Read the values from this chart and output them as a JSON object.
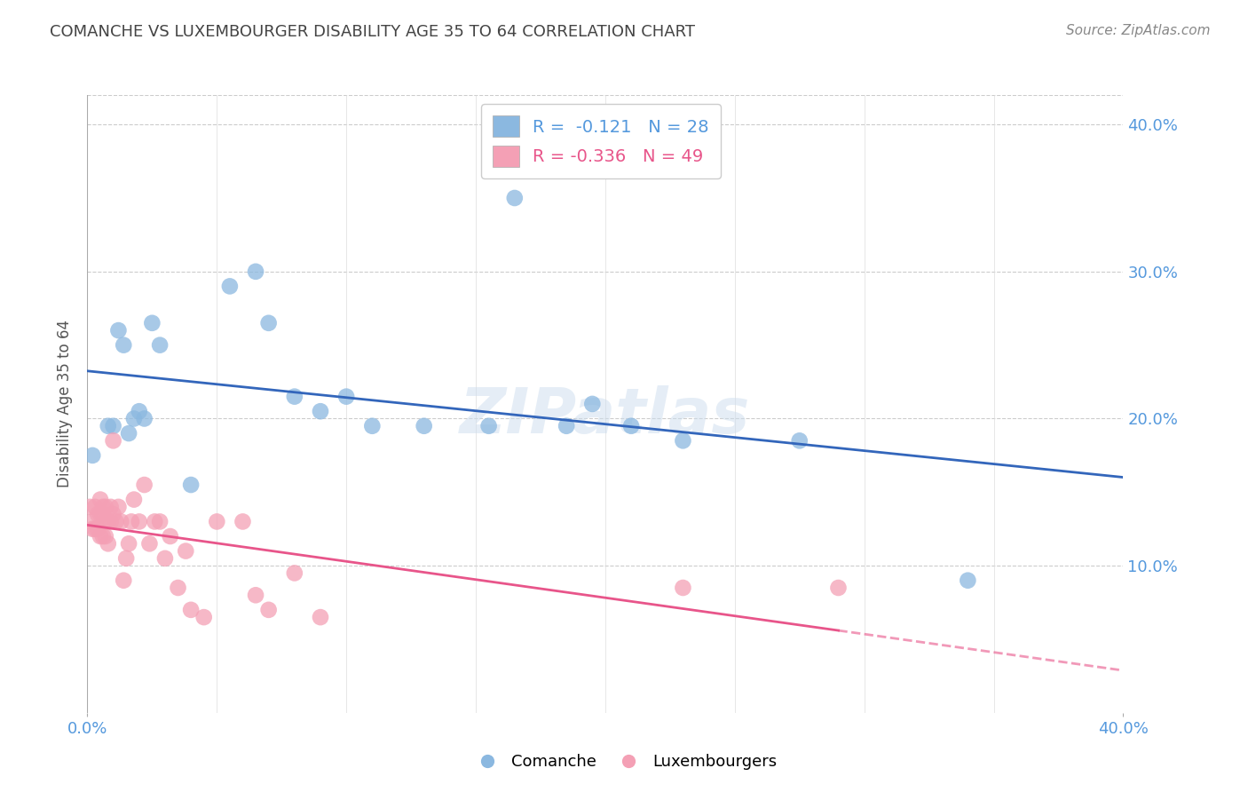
{
  "title": "COMANCHE VS LUXEMBOURGER DISABILITY AGE 35 TO 64 CORRELATION CHART",
  "source": "Source: ZipAtlas.com",
  "ylabel": "Disability Age 35 to 64",
  "xlim": [
    0.0,
    0.4
  ],
  "ylim": [
    -0.02,
    0.43
  ],
  "plot_ylim": [
    0.0,
    0.42
  ],
  "ytick_positions": [
    0.1,
    0.2,
    0.3,
    0.4
  ],
  "ytick_labels": [
    "10.0%",
    "20.0%",
    "30.0%",
    "40.0%"
  ],
  "xtick_positions": [
    0.0,
    0.4
  ],
  "xtick_labels": [
    "0.0%",
    "40.0%"
  ],
  "comanche_R": "-0.121",
  "comanche_N": "28",
  "luxembourger_R": "-0.336",
  "luxembourger_N": "49",
  "comanche_color": "#8BB8E0",
  "luxembourger_color": "#F4A0B5",
  "regression_blue": "#3366BB",
  "regression_pink": "#E8558A",
  "watermark": "ZIPatlas",
  "comanche_x": [
    0.002,
    0.008,
    0.01,
    0.012,
    0.014,
    0.016,
    0.018,
    0.02,
    0.022,
    0.025,
    0.028,
    0.04,
    0.055,
    0.065,
    0.07,
    0.08,
    0.09,
    0.1,
    0.11,
    0.13,
    0.155,
    0.165,
    0.185,
    0.195,
    0.21,
    0.23,
    0.275,
    0.34
  ],
  "comanche_y": [
    0.175,
    0.195,
    0.195,
    0.26,
    0.25,
    0.19,
    0.2,
    0.205,
    0.2,
    0.265,
    0.25,
    0.155,
    0.29,
    0.3,
    0.265,
    0.215,
    0.205,
    0.215,
    0.195,
    0.195,
    0.195,
    0.35,
    0.195,
    0.21,
    0.195,
    0.185,
    0.185,
    0.09
  ],
  "luxembourger_x": [
    0.001,
    0.002,
    0.002,
    0.003,
    0.003,
    0.004,
    0.004,
    0.005,
    0.005,
    0.005,
    0.006,
    0.006,
    0.006,
    0.007,
    0.007,
    0.007,
    0.008,
    0.008,
    0.009,
    0.009,
    0.01,
    0.01,
    0.011,
    0.012,
    0.013,
    0.014,
    0.015,
    0.016,
    0.017,
    0.018,
    0.02,
    0.022,
    0.024,
    0.026,
    0.028,
    0.03,
    0.032,
    0.035,
    0.038,
    0.04,
    0.045,
    0.05,
    0.06,
    0.065,
    0.07,
    0.08,
    0.09,
    0.23,
    0.29
  ],
  "luxembourger_y": [
    0.14,
    0.13,
    0.125,
    0.14,
    0.125,
    0.135,
    0.125,
    0.145,
    0.135,
    0.12,
    0.14,
    0.135,
    0.12,
    0.14,
    0.13,
    0.12,
    0.13,
    0.115,
    0.14,
    0.13,
    0.135,
    0.185,
    0.13,
    0.14,
    0.13,
    0.09,
    0.105,
    0.115,
    0.13,
    0.145,
    0.13,
    0.155,
    0.115,
    0.13,
    0.13,
    0.105,
    0.12,
    0.085,
    0.11,
    0.07,
    0.065,
    0.13,
    0.13,
    0.08,
    0.07,
    0.095,
    0.065,
    0.085,
    0.085
  ]
}
